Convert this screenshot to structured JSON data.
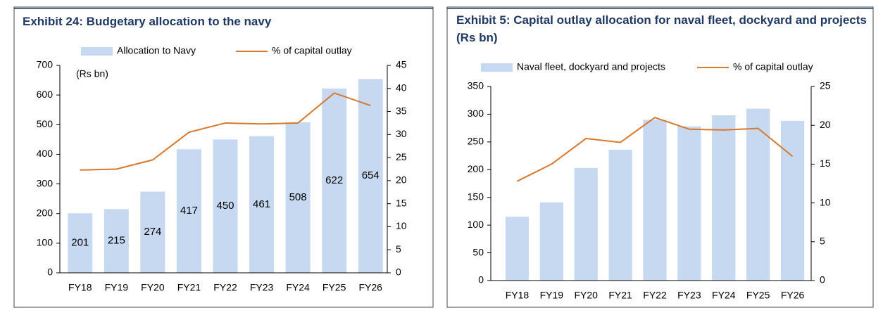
{
  "chart_data": [
    {
      "type": "bar-line",
      "title": "Exhibit 24:  Budgetary allocation to the navy",
      "annotation": "(Rs bn)",
      "categories": [
        "FY18",
        "FY19",
        "FY20",
        "FY21",
        "FY22",
        "FY23",
        "FY24",
        "FY25",
        "FY26"
      ],
      "series": [
        {
          "name": "Allocation to Navy",
          "type": "bar",
          "color": "#c6d9f0",
          "data_labels": true,
          "values": [
            201,
            215,
            274,
            417,
            450,
            461,
            508,
            622,
            654
          ]
        },
        {
          "name": "% of capital outlay",
          "type": "line",
          "color": "#d9782d",
          "axis": "y2",
          "values": [
            22.3,
            22.5,
            24.5,
            30.5,
            32.5,
            32.3,
            32.5,
            39,
            36.3
          ]
        }
      ],
      "ylim": [
        0,
        700
      ],
      "yticks": [
        0,
        100,
        200,
        300,
        400,
        500,
        600,
        700
      ],
      "y2lim": [
        0,
        45
      ],
      "y2ticks": [
        0,
        5,
        10,
        15,
        20,
        25,
        30,
        35,
        40,
        45
      ]
    },
    {
      "type": "bar-line",
      "title": "Exhibit 5:  Capital outlay allocation for naval fleet, dockyard and projects (Rs bn)",
      "categories": [
        "FY18",
        "FY19",
        "FY20",
        "FY21",
        "FY22",
        "FY23",
        "FY24",
        "FY25",
        "FY26"
      ],
      "series": [
        {
          "name": "Naval fleet, dockyard and projects",
          "type": "bar",
          "color": "#c6d9f0",
          "values": [
            115,
            141,
            203,
            236,
            290,
            278,
            298,
            310,
            288
          ]
        },
        {
          "name": "% of capital outlay",
          "type": "line",
          "color": "#d9782d",
          "axis": "y2",
          "values": [
            12.8,
            15,
            18.3,
            17.8,
            21,
            19.5,
            19.4,
            19.6,
            16
          ]
        }
      ],
      "ylim": [
        0,
        350
      ],
      "yticks": [
        0,
        50,
        100,
        150,
        200,
        250,
        300,
        350
      ],
      "y2lim": [
        0,
        25
      ],
      "y2ticks": [
        0,
        5,
        10,
        15,
        20,
        25
      ]
    }
  ]
}
